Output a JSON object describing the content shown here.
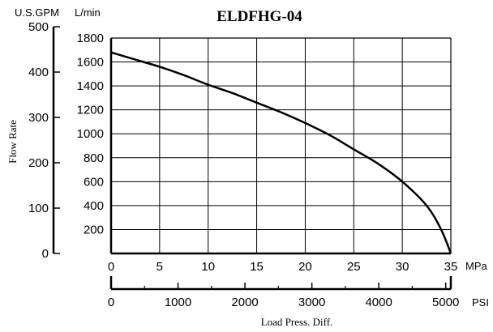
{
  "chart_data": {
    "type": "line",
    "title": "ELDFHG-04",
    "ylabel": "Flow Rate",
    "xlabel": "Load Press. Diff.",
    "y_unit_primary": "L/min",
    "y_unit_secondary": "U.S.GPM",
    "x_unit_primary": "MPa",
    "x_unit_secondary": "PSI",
    "xlim": [
      0,
      35
    ],
    "ylim": [
      0,
      1800
    ],
    "x_ticks": [
      0,
      5,
      10,
      15,
      20,
      25,
      30,
      35
    ],
    "y_ticks": [
      200,
      400,
      600,
      800,
      1000,
      1200,
      1400,
      1600,
      1800
    ],
    "gpm_ticks": [
      0,
      100,
      200,
      300,
      400,
      500
    ],
    "psi_ticks": [
      0,
      1000,
      2000,
      3000,
      4000,
      5000
    ],
    "grid": true,
    "series": [
      {
        "x": [
          0,
          2.5,
          5,
          7.5,
          10,
          12.5,
          15,
          17.5,
          20,
          22.5,
          25,
          27.5,
          30,
          32.5,
          34,
          35
        ],
        "values": [
          1680,
          1620,
          1560,
          1490,
          1410,
          1340,
          1260,
          1180,
          1090,
          990,
          870,
          750,
          600,
          400,
          200,
          0
        ]
      }
    ],
    "line_color": "#000000"
  }
}
